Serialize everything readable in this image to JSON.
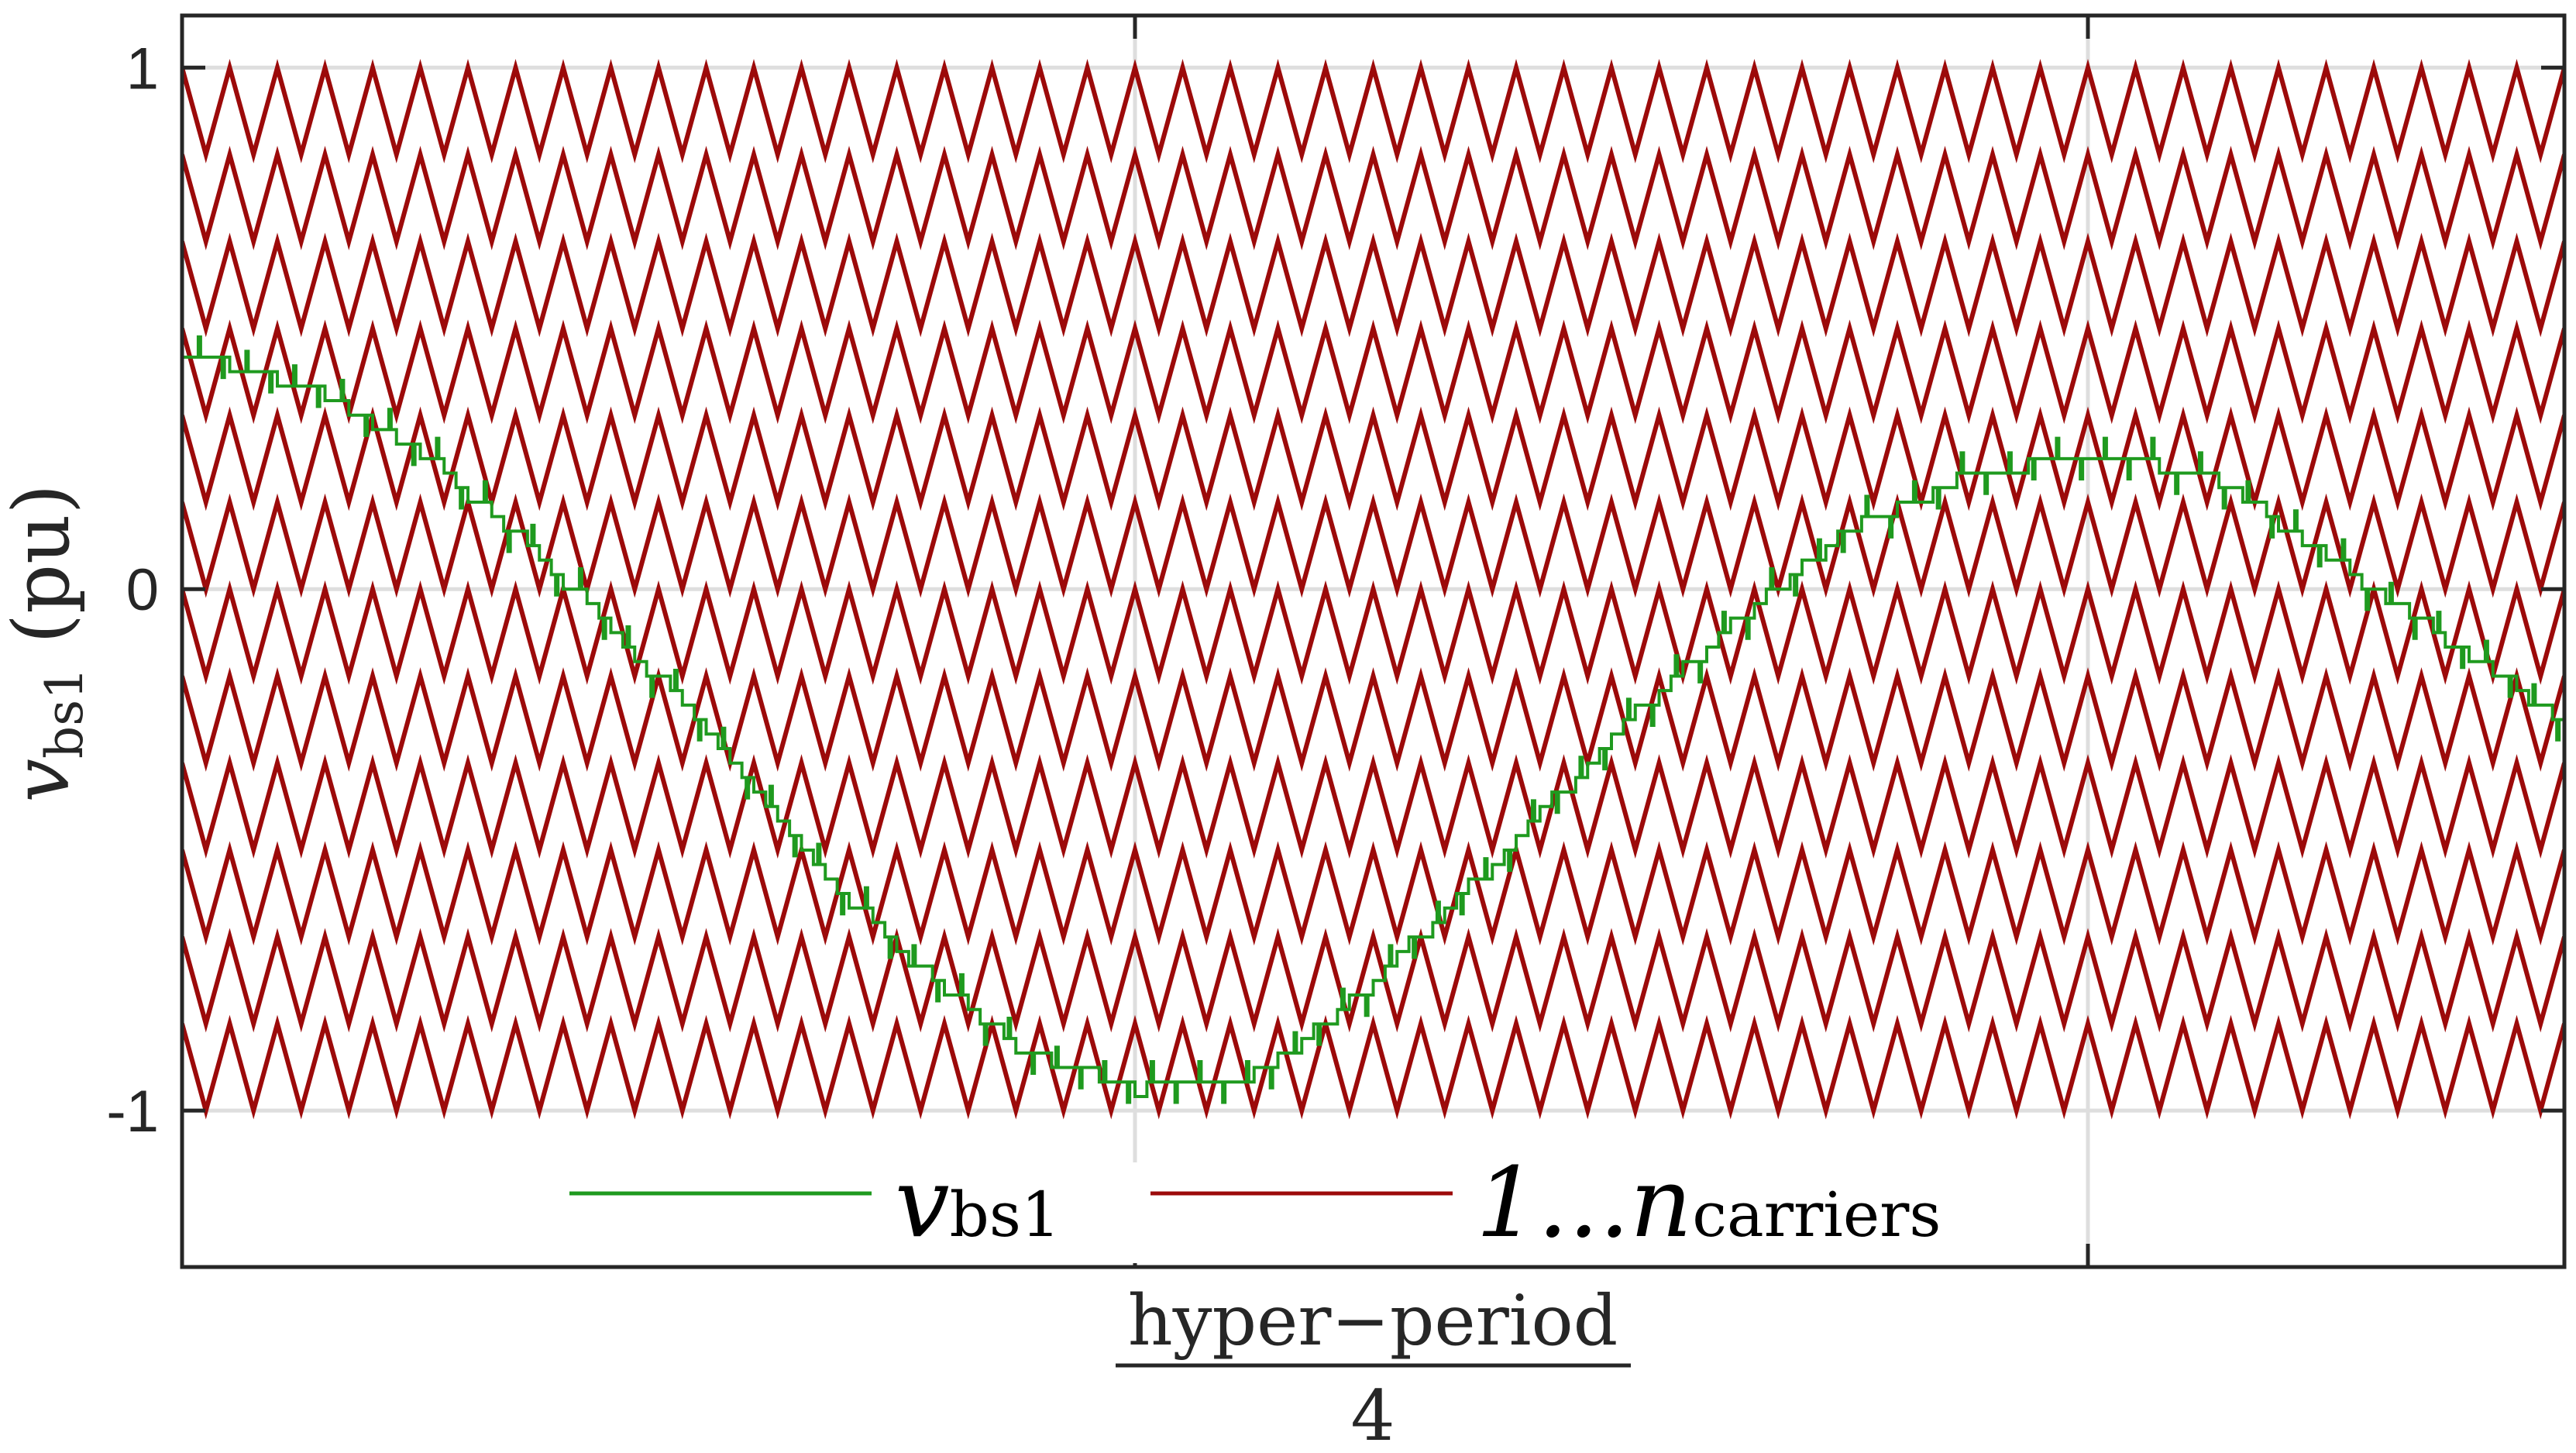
{
  "chart_data": {
    "type": "line",
    "title": "",
    "xlabel_numerator": "hyper−period",
    "xlabel_denominator": "4",
    "ylabel_main": "v",
    "ylabel_sub": "bs1",
    "ylabel_unit": "(pu)",
    "ylim": [
      -1.3,
      1.1
    ],
    "xlim": [
      0,
      1
    ],
    "y_ticks": [
      1,
      0,
      -1
    ],
    "y_tick_labels": [
      "1",
      "0",
      "-1"
    ],
    "x_ticks": [
      0.4,
      0.8
    ],
    "x_tick_labels": [],
    "grid": true,
    "legend_position": "bottom-center",
    "legend": [
      {
        "main": "v",
        "sub": "bs1"
      },
      {
        "main": "1...n",
        "sub": "carriers"
      }
    ],
    "carriers": {
      "count": 12,
      "band_height": 0.1667,
      "cycles": 50,
      "y_min": -1,
      "y_max": 1,
      "phase_shift": "in-phase"
    },
    "reference_signal": {
      "name": "v_bs1",
      "x": [
        0,
        0.05,
        0.1,
        0.15,
        0.2,
        0.25,
        0.3,
        0.35,
        0.4,
        0.45,
        0.5,
        0.55,
        0.6,
        0.65,
        0.7,
        0.75,
        0.8,
        0.85,
        0.9,
        0.95,
        1.0
      ],
      "y": [
        0.45,
        0.39,
        0.26,
        0.06,
        -0.18,
        -0.45,
        -0.7,
        -0.88,
        -0.96,
        -0.93,
        -0.75,
        -0.52,
        -0.28,
        -0.06,
        0.12,
        0.22,
        0.26,
        0.22,
        0.06,
        -0.1,
        -0.26
      ]
    },
    "colors": {
      "carrier": "#9c0a0a",
      "reference": "#1f9a1f",
      "grid": "#dedede",
      "axis": "#262626"
    }
  }
}
